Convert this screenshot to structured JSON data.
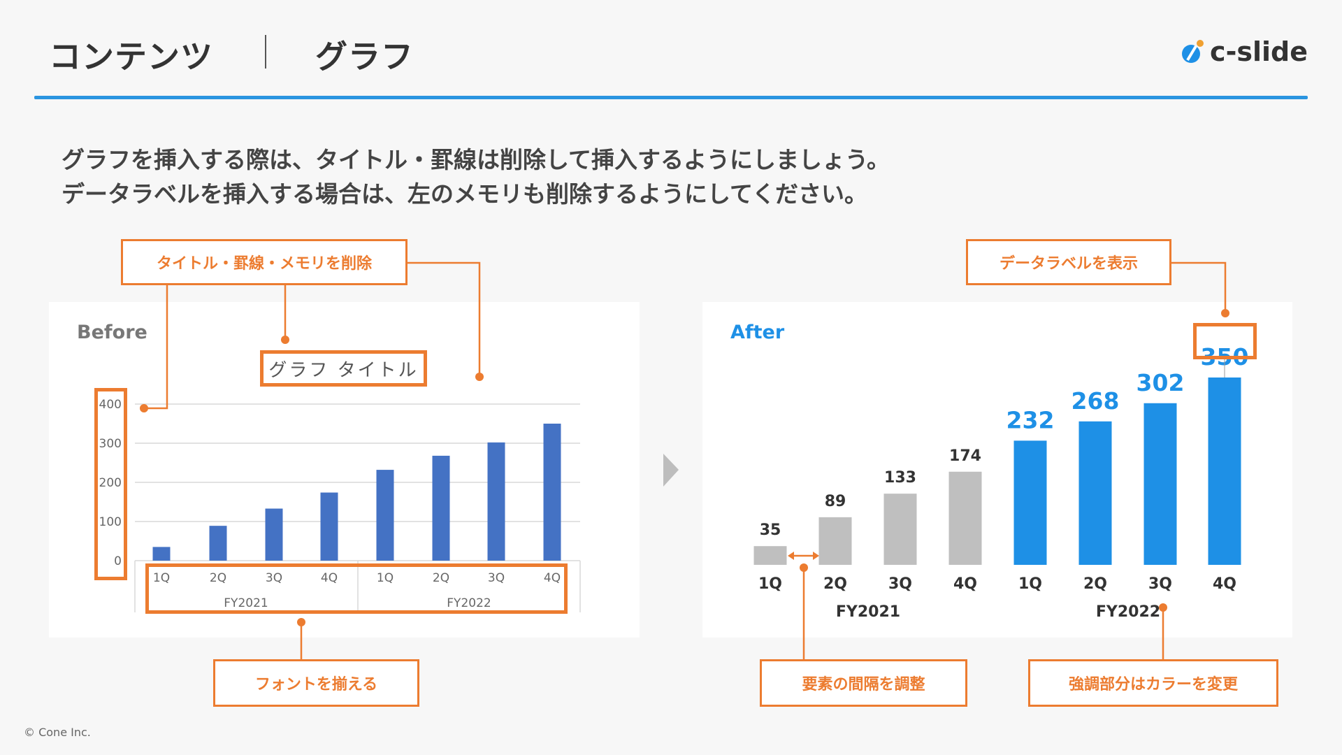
{
  "header": {
    "section": "コンテンツ",
    "title": "グラフ",
    "logo": "c-slide"
  },
  "lead": [
    "グラフを挿入する際は、タイトル・罫線は削除して挿入するようにしましょう。",
    "データラベルを挿入する場合は、左のメモリも削除するようにしてください。"
  ],
  "callouts": {
    "remove": "タイトル・罫線・メモリを削除",
    "font": "フォントを揃える",
    "spacing": "要素の間隔を調整",
    "color": "強調部分はカラーを変更",
    "label": "データラベルを表示"
  },
  "footer": "© Cone Inc.",
  "colors": {
    "accent": "#ec7c30",
    "blue": "#1e90e6",
    "before_bar": "#4472c4",
    "gray_bar": "#bfbfbf"
  },
  "chart_data": [
    {
      "type": "bar",
      "panel": "Before",
      "title": "グラフ タイトル",
      "categories": [
        "1Q",
        "2Q",
        "3Q",
        "4Q",
        "1Q",
        "2Q",
        "3Q",
        "4Q"
      ],
      "groups": [
        "FY2021",
        "FY2022"
      ],
      "values": [
        35,
        89,
        133,
        174,
        232,
        268,
        302,
        350
      ],
      "yticks": [
        "0",
        "100",
        "200",
        "300",
        "400"
      ],
      "ylim": [
        0,
        400
      ],
      "grid": true
    },
    {
      "type": "bar",
      "panel": "After",
      "categories": [
        "1Q",
        "2Q",
        "3Q",
        "4Q",
        "1Q",
        "2Q",
        "3Q",
        "4Q"
      ],
      "groups": [
        "FY2021",
        "FY2022"
      ],
      "values": [
        35,
        89,
        133,
        174,
        232,
        268,
        302,
        350
      ],
      "labels": [
        "35",
        "89",
        "133",
        "174",
        "232",
        "268",
        "302",
        "350"
      ],
      "highlight": [
        false,
        false,
        false,
        false,
        true,
        true,
        true,
        true
      ],
      "grid": false
    }
  ]
}
